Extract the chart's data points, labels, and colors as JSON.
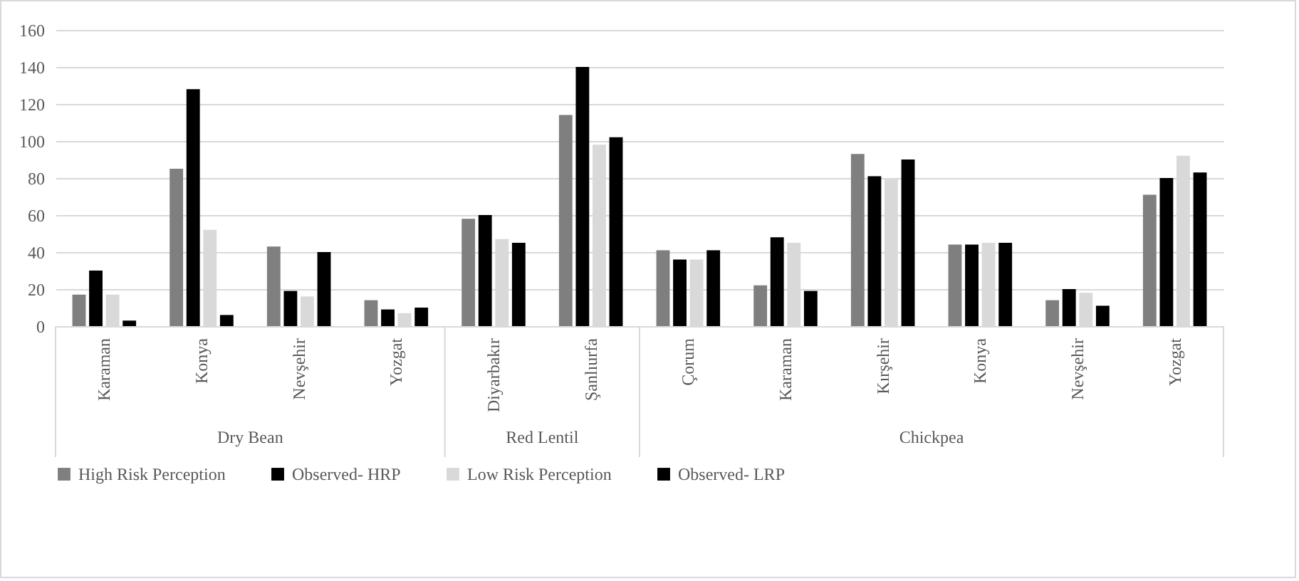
{
  "chart_data": {
    "type": "bar",
    "categories": [
      "Karaman",
      "Konya",
      "Nevşehir",
      "Yozgat",
      "Diyarbakır",
      "Şanlıurfa",
      "Çorum",
      "Karaman",
      "Kırşehir",
      "Konya",
      "Nevşehir",
      "Yozgat"
    ],
    "annotations": [
      "Dry Bean",
      "Red Lentil",
      "Chickpea"
    ],
    "series": [
      {
        "name": "High Risk Perception",
        "color": "#7f7f7f",
        "values": [
          17,
          85,
          43,
          14,
          58,
          114,
          41,
          22,
          93,
          44,
          14,
          71
        ]
      },
      {
        "name": "Observed- HRP",
        "color": "#000000",
        "values": [
          30,
          128,
          19,
          9,
          60,
          140,
          36,
          48,
          81,
          44,
          20,
          80
        ]
      },
      {
        "name": "Low Risk Perception",
        "color": "#d9d9d9",
        "values": [
          17,
          52,
          16,
          7,
          47,
          98,
          36,
          45,
          80,
          45,
          18,
          92
        ]
      },
      {
        "name": "Observed- LRP",
        "color": "#000000",
        "values": [
          3,
          6,
          40,
          10,
          45,
          102,
          41,
          19,
          90,
          45,
          11,
          83
        ]
      }
    ],
    "ylim": [
      0,
      160
    ],
    "yticks": [
      0,
      20,
      40,
      60,
      80,
      100,
      120,
      140,
      160
    ],
    "grid": "y",
    "legend": "bottom"
  }
}
